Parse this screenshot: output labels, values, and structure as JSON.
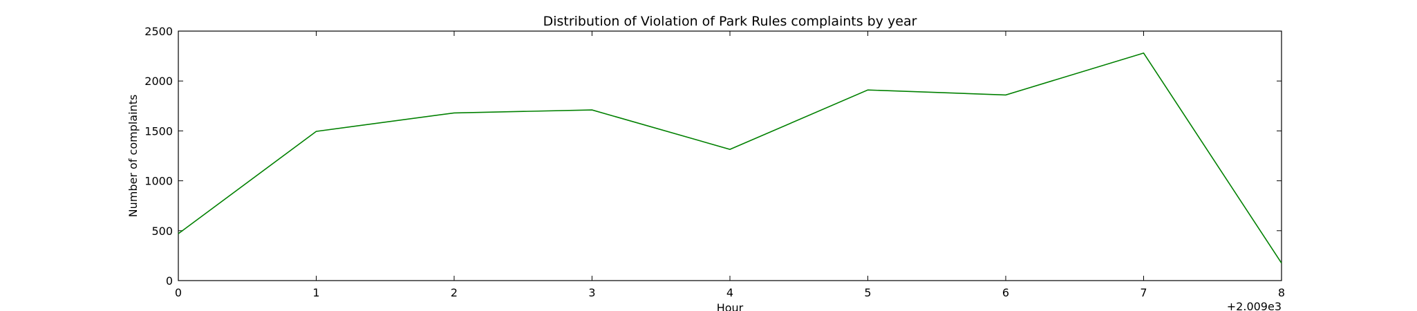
{
  "chart_data": {
    "type": "line",
    "title": "Distribution of  Violation of Park Rules complaints by year",
    "xlabel": "Hour",
    "ylabel": "Number of complaints",
    "x_offset_label": "+2.009e3",
    "x": [
      0,
      1,
      2,
      3,
      4,
      5,
      6,
      7,
      8
    ],
    "x_ticks": [
      0,
      1,
      2,
      3,
      4,
      5,
      6,
      7,
      8
    ],
    "y_ticks": [
      0,
      500,
      1000,
      1500,
      2000,
      2500
    ],
    "xlim": [
      0,
      8
    ],
    "ylim": [
      0,
      2500
    ],
    "grid": false,
    "series": [
      {
        "color": "#008000",
        "values": [
          470,
          1495,
          1680,
          1710,
          1315,
          1910,
          1860,
          2280,
          175
        ]
      }
    ]
  }
}
